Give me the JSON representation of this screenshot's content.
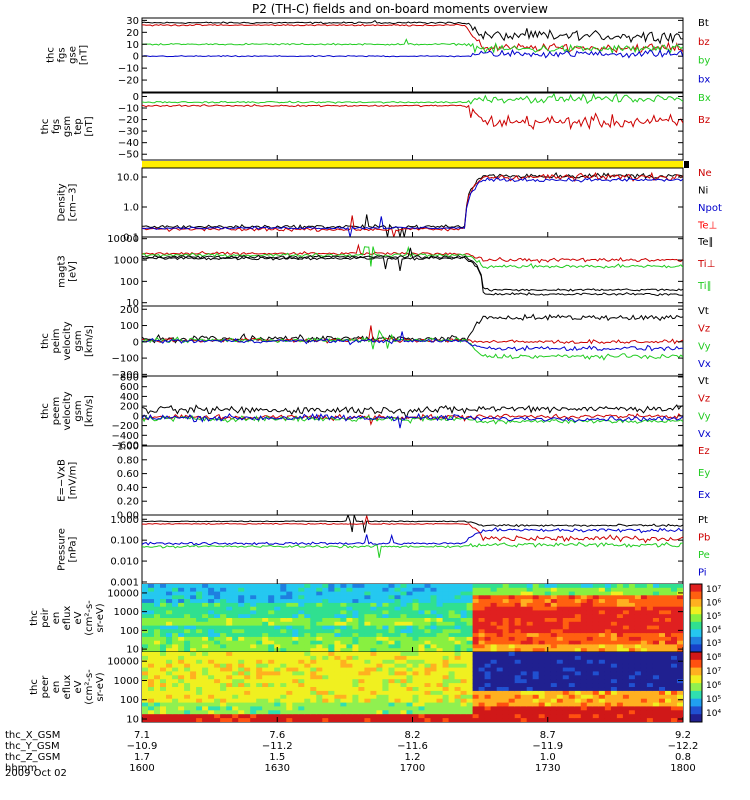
{
  "title": "P2 (TH-C) fields and on-board moments overview",
  "date": "2009 Oct 02",
  "colors": {
    "black": "#000000",
    "red": "#cc0000",
    "green": "#22cc22",
    "blue": "#0000cc",
    "yellow": "#ffee00",
    "brightred": "#ff0000"
  },
  "footer": {
    "row_labels": [
      "thc_X_GSM",
      "thc_Y_GSM",
      "thc_Z_GSM",
      "hhmm"
    ],
    "columns": [
      {
        "x": "7.1",
        "y": "−10.9",
        "z": "1.7",
        "t": "1600"
      },
      {
        "x": "7.6",
        "y": "−11.2",
        "z": "1.5",
        "t": "1630"
      },
      {
        "x": "8.2",
        "y": "−11.6",
        "z": "1.2",
        "t": "1700"
      },
      {
        "x": "8.7",
        "y": "−11.9",
        "z": "1.0",
        "t": "1730"
      },
      {
        "x": "9.2",
        "y": "−12.2",
        "z": "0.8",
        "t": "1800"
      }
    ]
  },
  "chart_data": [
    {
      "type": "line",
      "ylabel": [
        "thc",
        "fgs",
        "gse",
        "[nT]"
      ],
      "ylim": [
        -30,
        32
      ],
      "ticks": [
        "30",
        "20",
        "10",
        "0",
        "−10",
        "−20"
      ],
      "tick_values": [
        30,
        20,
        10,
        0,
        -10,
        -20
      ],
      "legend": [
        {
          "name": "Bt",
          "color": "#000000"
        },
        {
          "name": "bz",
          "color": "#cc0000"
        },
        {
          "name": "by",
          "color": "#22cc22"
        },
        {
          "name": "bx",
          "color": "#0000cc"
        }
      ],
      "series": [
        {
          "name": "Bt",
          "pre": 28,
          "post": 17,
          "noise": [
            0.6,
            4
          ]
        },
        {
          "name": "bz",
          "pre": 26,
          "post": 7,
          "noise": [
            0.5,
            3
          ]
        },
        {
          "name": "by",
          "pre": 10,
          "post": 6,
          "noise": [
            0.6,
            3
          ]
        },
        {
          "name": "bx",
          "pre": 0,
          "post": 2,
          "noise": [
            0.4,
            2.5
          ]
        }
      ]
    },
    {
      "type": "line",
      "ylabel": [
        "thc",
        "fgs",
        "gsm",
        "tep",
        "[nT]"
      ],
      "ylim": [
        -55,
        3
      ],
      "ticks": [
        "0",
        "−10",
        "−20",
        "−30",
        "−40",
        "−50"
      ],
      "tick_values": [
        0,
        -10,
        -20,
        -30,
        -40,
        -50
      ],
      "legend": [
        {
          "name": "Bx",
          "color": "#22cc22"
        },
        {
          "name": "Bz",
          "color": "#cc0000"
        }
      ],
      "series": [
        {
          "name": "Bx",
          "pre": -5,
          "post": -2,
          "noise": [
            0.6,
            3
          ]
        },
        {
          "name": "Bz",
          "pre": -8,
          "post": -22,
          "noise": [
            0.6,
            5
          ]
        }
      ]
    },
    {
      "type": "bar-strip",
      "color": "#ffee00"
    },
    {
      "type": "line",
      "scale": "log",
      "ylabel": [
        "Density",
        "[cm−3]"
      ],
      "ylim": [
        0.1,
        20
      ],
      "ticks": [
        "10.0",
        "1.0",
        "0.1"
      ],
      "tick_values": [
        10,
        1,
        0.1
      ],
      "legend": [
        {
          "name": "Ne",
          "color": "#cc0000"
        },
        {
          "name": "Ni",
          "color": "#000000"
        },
        {
          "name": "Npot",
          "color": "#0000cc"
        },
        {
          "name": "Te⊥",
          "color": "#ff0000"
        }
      ],
      "series": [
        {
          "name": "Ni",
          "pre": 0.22,
          "post": 11,
          "noise": [
            0.05,
            0.08
          ]
        },
        {
          "name": "Ne",
          "pre": 0.18,
          "post": 10,
          "noise": [
            0.05,
            0.1
          ]
        },
        {
          "name": "Npot",
          "pre": 0.2,
          "post": 8,
          "noise": [
            0.03,
            0.05
          ]
        }
      ]
    },
    {
      "type": "line",
      "scale": "log",
      "ylabel": [
        "magt3",
        "[eV]"
      ],
      "ylim": [
        7,
        12000
      ],
      "ticks": [
        "10000",
        "1000",
        "100",
        "10"
      ],
      "tick_values": [
        10000,
        1000,
        100,
        10
      ],
      "legend": [
        {
          "name": "Te∥",
          "color": "#000000"
        },
        {
          "name": "Ti⊥",
          "color": "#cc0000"
        },
        {
          "name": "Ti∥",
          "color": "#22cc22"
        }
      ],
      "series": [
        {
          "name": "Ti⊥",
          "pre": 2000,
          "post": 1000,
          "noise": [
            0.06,
            0.08
          ]
        },
        {
          "name": "Ti∥",
          "pre": 1700,
          "post": 500,
          "noise": [
            0.06,
            0.08
          ]
        },
        {
          "name": "Te∥",
          "pre": 1400,
          "post": 40,
          "noise": [
            0.06,
            0.05
          ]
        },
        {
          "name": "Te⊥",
          "pre": 1200,
          "post": 25,
          "noise": [
            0.06,
            0.05
          ]
        }
      ]
    },
    {
      "type": "line",
      "ylabel": [
        "thc",
        "peim",
        "velocity",
        "gsm",
        "[km/s]"
      ],
      "ylim": [
        -210,
        220
      ],
      "ticks": [
        "200",
        "100",
        "0",
        "−100",
        "−200"
      ],
      "tick_values": [
        200,
        100,
        0,
        -100,
        -200
      ],
      "legend": [
        {
          "name": "Vt",
          "color": "#000000"
        },
        {
          "name": "Vz",
          "color": "#cc0000"
        },
        {
          "name": "Vy",
          "color": "#22cc22"
        },
        {
          "name": "Vx",
          "color": "#0000cc"
        }
      ],
      "series": [
        {
          "name": "Vt",
          "pre": 20,
          "post": 150,
          "noise": [
            20,
            15
          ]
        },
        {
          "name": "Vz",
          "pre": 10,
          "post": 0,
          "noise": [
            12,
            10
          ]
        },
        {
          "name": "Vy",
          "pre": 10,
          "post": -90,
          "noise": [
            12,
            12
          ]
        },
        {
          "name": "Vx",
          "pre": 5,
          "post": -40,
          "noise": [
            10,
            12
          ]
        }
      ]
    },
    {
      "type": "line",
      "ylabel": [
        "thc",
        "peem",
        "velocity",
        "gsm",
        "[km/s]"
      ],
      "ylim": [
        -620,
        820
      ],
      "ticks": [
        "800",
        "600",
        "400",
        "200",
        "0",
        "−200",
        "−400",
        "−600"
      ],
      "tick_values": [
        800,
        600,
        400,
        200,
        0,
        -200,
        -400,
        -600
      ],
      "legend": [
        {
          "name": "Vt",
          "color": "#000000"
        },
        {
          "name": "Vz",
          "color": "#cc0000"
        },
        {
          "name": "Vy",
          "color": "#22cc22"
        },
        {
          "name": "Vx",
          "color": "#0000cc"
        }
      ],
      "series": [
        {
          "name": "Vt",
          "pre": 120,
          "post": 150,
          "noise": [
            70,
            60
          ]
        },
        {
          "name": "Vz",
          "pre": -30,
          "post": -10,
          "noise": [
            50,
            40
          ]
        },
        {
          "name": "Vy",
          "pre": -60,
          "post": -110,
          "noise": [
            50,
            40
          ]
        },
        {
          "name": "Vx",
          "pre": -40,
          "post": -60,
          "noise": [
            60,
            40
          ]
        }
      ]
    },
    {
      "type": "line",
      "ylabel": [
        "E=−VxB",
        "[mV/m]"
      ],
      "ylim": [
        0,
        1
      ],
      "ticks": [
        "1.00",
        "0.80",
        "0.60",
        "0.40",
        "0.20",
        "0.00"
      ],
      "tick_values": [
        1,
        0.8,
        0.6,
        0.4,
        0.2,
        0
      ],
      "legend": [
        {
          "name": "Ez",
          "color": "#cc0000"
        },
        {
          "name": "Ey",
          "color": "#22cc22"
        },
        {
          "name": "Ex",
          "color": "#0000cc"
        }
      ],
      "series": []
    },
    {
      "type": "line",
      "scale": "log",
      "ylabel": [
        "Pressure",
        "[nPa]"
      ],
      "ylim": [
        0.0008,
        1.6
      ],
      "ticks": [
        "1.000",
        "0.100",
        "0.010",
        "0.001"
      ],
      "tick_values": [
        1,
        0.1,
        0.01,
        0.001
      ],
      "legend": [
        {
          "name": "Pt",
          "color": "#000000"
        },
        {
          "name": "Pb",
          "color": "#cc0000"
        },
        {
          "name": "Pe",
          "color": "#22cc22"
        },
        {
          "name": "Pi",
          "color": "#0000cc"
        }
      ],
      "series": [
        {
          "name": "Pt",
          "pre": 0.8,
          "post": 0.5,
          "noise": [
            0.02,
            0.05
          ]
        },
        {
          "name": "Pb",
          "pre": 0.6,
          "post": 0.12,
          "noise": [
            0.02,
            0.12
          ]
        },
        {
          "name": "Pi",
          "pre": 0.07,
          "post": 0.3,
          "noise": [
            0.05,
            0.08
          ]
        },
        {
          "name": "Pe",
          "pre": 0.05,
          "post": 0.06,
          "noise": [
            0.05,
            0.1
          ]
        }
      ]
    },
    {
      "type": "heatmap",
      "ylabel": [
        "thc",
        "peir",
        "en",
        "eflux",
        "eV",
        "(cm²-s-",
        "sr-eV)"
      ],
      "ylim": [
        7,
        30000
      ],
      "ticks": [
        "10000",
        "1000",
        "100",
        "10"
      ],
      "tick_values": [
        10000,
        1000,
        100,
        10
      ],
      "colorbar": {
        "ticks": [
          "10⁷",
          "10⁶",
          "10⁵",
          "10⁴",
          "10³"
        ]
      }
    },
    {
      "type": "heatmap",
      "ylabel": [
        "thc",
        "peer",
        "en",
        "eflux",
        "eV",
        "(cm²-s-",
        "sr-eV)"
      ],
      "ylim": [
        7,
        30000
      ],
      "ticks": [
        "10000",
        "1000",
        "100",
        "10"
      ],
      "tick_values": [
        10000,
        1000,
        100,
        10
      ],
      "colorbar": {
        "ticks": [
          "10⁸",
          "10⁷",
          "10⁶",
          "10⁵",
          "10⁴"
        ]
      }
    }
  ]
}
